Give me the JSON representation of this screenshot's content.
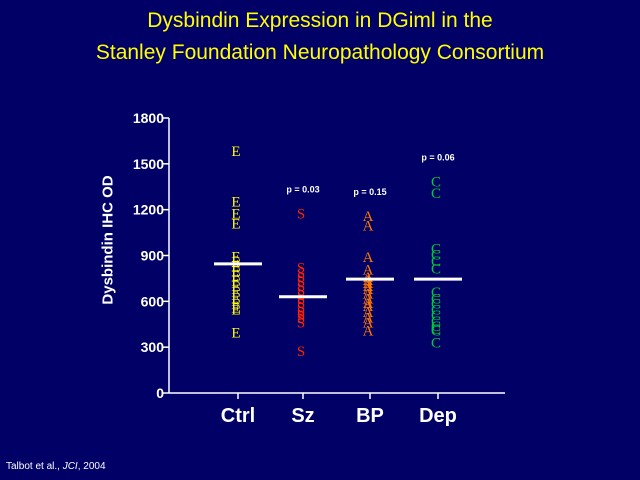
{
  "title_line1": "Dysbindin Expression in DGiml in the",
  "title_line2": "Stanley Foundation Neuropathology Consortium",
  "citation": {
    "pre": "Talbot et al., ",
    "journal": "JCI",
    "post": ", 2004"
  },
  "colors": {
    "background": "#000066",
    "title": "#FFFF00",
    "axis": "#ffffff",
    "mean_line": "#ffffff"
  },
  "chart_data": {
    "type": "scatter",
    "ylabel": "Dysbindin IHC OD",
    "ylim": [
      0,
      1800
    ],
    "yticks": [
      0,
      300,
      600,
      900,
      1200,
      1500,
      1800
    ],
    "categories": [
      "Ctrl",
      "Sz",
      "BP",
      "Dep"
    ],
    "series": [
      {
        "category": "Ctrl",
        "marker": "E",
        "color": "#FFFF00",
        "mean": 845,
        "pvalue": "",
        "values": [
          1585,
          1255,
          1175,
          1110,
          895,
          860,
          830,
          800,
          770,
          735,
          700,
          665,
          625,
          585,
          560,
          545,
          395
        ]
      },
      {
        "category": "Sz",
        "marker": "S",
        "color": "#FF2200",
        "mean": 630,
        "pvalue": "p = 0.03",
        "values": [
          1175,
          820,
          785,
          760,
          730,
          700,
          670,
          640,
          615,
          590,
          560,
          535,
          510,
          490,
          460,
          275
        ]
      },
      {
        "category": "BP",
        "marker": "A",
        "color": "#FF7700",
        "mean": 745,
        "pvalue": "p = 0.15",
        "values": [
          1160,
          1095,
          890,
          810,
          760,
          740,
          720,
          700,
          680,
          650,
          620,
          590,
          570,
          530,
          495,
          460,
          410
        ]
      },
      {
        "category": "Dep",
        "marker": "C",
        "color": "#00CC33",
        "mean": 745,
        "pvalue": "p = 0.06",
        "values": [
          1385,
          1310,
          945,
          905,
          865,
          815,
          660,
          620,
          585,
          545,
          510,
          470,
          440,
          420,
          410,
          330
        ]
      }
    ]
  }
}
